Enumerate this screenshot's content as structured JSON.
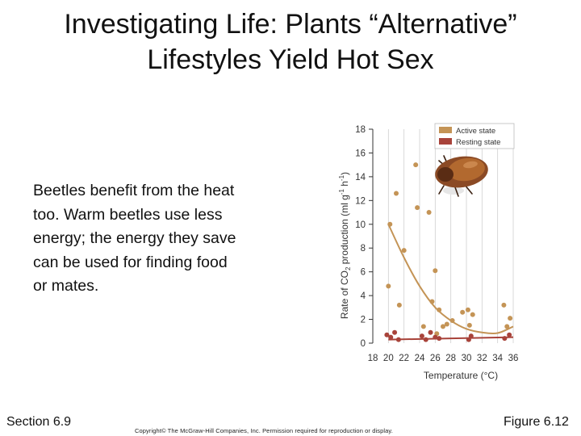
{
  "slide": {
    "title_line1": "Investigating Life: Plants “Alternative”",
    "title_line2": "Lifestyles Yield Hot Sex",
    "body_line1": "Beetles benefit from the heat",
    "body_line2": "too. Warm beetles use less",
    "body_line3": "energy; the energy they save",
    "body_line4": "can be used for finding food",
    "body_line5": "or mates.",
    "footer_left": "Section 6.9",
    "footer_right": "Figure 6.12",
    "copyright": "Copyright© The McGraw-Hill Companies, Inc. Permission required for reproduction or display."
  },
  "chart_data": {
    "type": "scatter",
    "xlabel": "Temperature (°C)",
    "ylabel_pre": "Rate of CO",
    "ylabel_sub": "2",
    "ylabel_mid": " production (ml g",
    "ylabel_sup1": "-1",
    "ylabel_mid2": " h",
    "ylabel_sup2": "-1",
    "ylabel_post": ")",
    "xlim": [
      18,
      36
    ],
    "ylim": [
      0,
      18
    ],
    "x_ticks": [
      "18",
      "20",
      "22",
      "24",
      "26",
      "28",
      "30",
      "32",
      "34",
      "36"
    ],
    "y_ticks": [
      "0",
      "2",
      "4",
      "6",
      "8",
      "10",
      "12",
      "14",
      "16",
      "18"
    ],
    "grid": true,
    "legend_position": "top-right",
    "colors": {
      "active": "#c49456",
      "resting": "#a8433a",
      "grid": "#cfcfcf"
    },
    "series": [
      {
        "name": "Active state",
        "points": [
          [
            20,
            4.8
          ],
          [
            20.2,
            10
          ],
          [
            21,
            12.6
          ],
          [
            21.4,
            3.2
          ],
          [
            22,
            7.8
          ],
          [
            23.5,
            15
          ],
          [
            23.7,
            11.4
          ],
          [
            24.5,
            1.4
          ],
          [
            25.2,
            11
          ],
          [
            25.6,
            3.5
          ],
          [
            26,
            6.1
          ],
          [
            26.2,
            0.8
          ],
          [
            26.5,
            2.8
          ],
          [
            27,
            1.4
          ],
          [
            27.5,
            1.6
          ],
          [
            28.2,
            1.9
          ],
          [
            29.5,
            2.6
          ],
          [
            30.2,
            2.8
          ],
          [
            30.4,
            1.5
          ],
          [
            30.8,
            2.4
          ],
          [
            34.8,
            3.2
          ],
          [
            35.2,
            1.4
          ],
          [
            35.6,
            2.1
          ]
        ],
        "fit": [
          [
            20,
            10
          ],
          [
            22,
            7.2
          ],
          [
            24,
            4.8
          ],
          [
            26,
            3
          ],
          [
            28,
            1.9
          ],
          [
            30,
            1.2
          ],
          [
            32,
            0.9
          ],
          [
            34,
            0.85
          ],
          [
            36,
            1.4
          ]
        ]
      },
      {
        "name": "Resting state",
        "points": [
          [
            19.8,
            0.7
          ],
          [
            20.3,
            0.5
          ],
          [
            20.8,
            0.9
          ],
          [
            21.3,
            0.3
          ],
          [
            24.3,
            0.6
          ],
          [
            24.8,
            0.3
          ],
          [
            25.4,
            0.9
          ],
          [
            26,
            0.5
          ],
          [
            26.5,
            0.4
          ],
          [
            30.3,
            0.3
          ],
          [
            30.6,
            0.6
          ],
          [
            34.9,
            0.4
          ],
          [
            35.5,
            0.7
          ]
        ],
        "fit": [
          [
            20,
            0.3
          ],
          [
            36,
            0.5
          ]
        ]
      }
    ]
  }
}
